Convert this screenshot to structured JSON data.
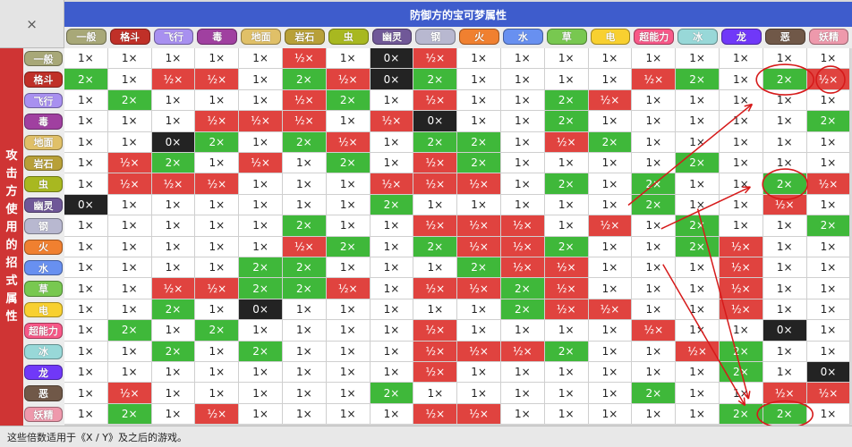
{
  "corner_symbol": "×",
  "defense_title": "防御方的宝可梦属性",
  "attack_title": "攻击方使用的招式属性",
  "footnote": "这些倍数适用于《X / Y》及之后的游戏。",
  "types": [
    {
      "name": "一般",
      "color": "#a8a878"
    },
    {
      "name": "格斗",
      "color": "#c03028"
    },
    {
      "name": "飞行",
      "color": "#a890f0"
    },
    {
      "name": "毒",
      "color": "#a040a0"
    },
    {
      "name": "地面",
      "color": "#e0c068"
    },
    {
      "name": "岩石",
      "color": "#b8a038"
    },
    {
      "name": "虫",
      "color": "#a8b820"
    },
    {
      "name": "幽灵",
      "color": "#705898"
    },
    {
      "name": "钢",
      "color": "#b8b8d0"
    },
    {
      "name": "火",
      "color": "#f08030"
    },
    {
      "name": "水",
      "color": "#6890f0"
    },
    {
      "name": "草",
      "color": "#78c850"
    },
    {
      "name": "电",
      "color": "#f8d030"
    },
    {
      "name": "超能力",
      "color": "#f85888"
    },
    {
      "name": "冰",
      "color": "#98d8d8"
    },
    {
      "name": "龙",
      "color": "#7038f8"
    },
    {
      "name": "恶",
      "color": "#705848"
    },
    {
      "name": "妖精",
      "color": "#ee99ac"
    }
  ],
  "multipliers": [
    [
      "1×",
      "1×",
      "1×",
      "1×",
      "1×",
      "½×",
      "1×",
      "0×",
      "½×",
      "1×",
      "1×",
      "1×",
      "1×",
      "1×",
      "1×",
      "1×",
      "1×",
      "1×"
    ],
    [
      "2×",
      "1×",
      "½×",
      "½×",
      "1×",
      "2×",
      "½×",
      "0×",
      "2×",
      "1×",
      "1×",
      "1×",
      "1×",
      "½×",
      "2×",
      "1×",
      "2×",
      "½×"
    ],
    [
      "1×",
      "2×",
      "1×",
      "1×",
      "1×",
      "½×",
      "2×",
      "1×",
      "½×",
      "1×",
      "1×",
      "2×",
      "½×",
      "1×",
      "1×",
      "1×",
      "1×",
      "1×"
    ],
    [
      "1×",
      "1×",
      "1×",
      "½×",
      "½×",
      "½×",
      "1×",
      "½×",
      "0×",
      "1×",
      "1×",
      "2×",
      "1×",
      "1×",
      "1×",
      "1×",
      "1×",
      "2×"
    ],
    [
      "1×",
      "1×",
      "0×",
      "2×",
      "1×",
      "2×",
      "½×",
      "1×",
      "2×",
      "2×",
      "1×",
      "½×",
      "2×",
      "1×",
      "1×",
      "1×",
      "1×",
      "1×"
    ],
    [
      "1×",
      "½×",
      "2×",
      "1×",
      "½×",
      "1×",
      "2×",
      "1×",
      "½×",
      "2×",
      "1×",
      "1×",
      "1×",
      "1×",
      "2×",
      "1×",
      "1×",
      "1×"
    ],
    [
      "1×",
      "½×",
      "½×",
      "½×",
      "1×",
      "1×",
      "1×",
      "½×",
      "½×",
      "½×",
      "1×",
      "2×",
      "1×",
      "2×",
      "1×",
      "1×",
      "2×",
      "½×"
    ],
    [
      "0×",
      "1×",
      "1×",
      "1×",
      "1×",
      "1×",
      "1×",
      "2×",
      "1×",
      "1×",
      "1×",
      "1×",
      "1×",
      "2×",
      "1×",
      "1×",
      "½×",
      "1×"
    ],
    [
      "1×",
      "1×",
      "1×",
      "1×",
      "1×",
      "2×",
      "1×",
      "1×",
      "½×",
      "½×",
      "½×",
      "1×",
      "½×",
      "1×",
      "2×",
      "1×",
      "1×",
      "2×"
    ],
    [
      "1×",
      "1×",
      "1×",
      "1×",
      "1×",
      "½×",
      "2×",
      "1×",
      "2×",
      "½×",
      "½×",
      "2×",
      "1×",
      "1×",
      "2×",
      "½×",
      "1×",
      "1×"
    ],
    [
      "1×",
      "1×",
      "1×",
      "1×",
      "2×",
      "2×",
      "1×",
      "1×",
      "1×",
      "2×",
      "½×",
      "½×",
      "1×",
      "1×",
      "1×",
      "½×",
      "1×",
      "1×"
    ],
    [
      "1×",
      "1×",
      "½×",
      "½×",
      "2×",
      "2×",
      "½×",
      "1×",
      "½×",
      "½×",
      "2×",
      "½×",
      "1×",
      "1×",
      "1×",
      "½×",
      "1×",
      "1×"
    ],
    [
      "1×",
      "1×",
      "2×",
      "1×",
      "0×",
      "1×",
      "1×",
      "1×",
      "1×",
      "1×",
      "2×",
      "½×",
      "½×",
      "1×",
      "1×",
      "½×",
      "1×",
      "1×"
    ],
    [
      "1×",
      "2×",
      "1×",
      "2×",
      "1×",
      "1×",
      "1×",
      "1×",
      "½×",
      "1×",
      "1×",
      "1×",
      "1×",
      "½×",
      "1×",
      "1×",
      "0×",
      "1×"
    ],
    [
      "1×",
      "1×",
      "2×",
      "1×",
      "2×",
      "1×",
      "1×",
      "1×",
      "½×",
      "½×",
      "½×",
      "2×",
      "1×",
      "1×",
      "½×",
      "2×",
      "1×",
      "1×"
    ],
    [
      "1×",
      "1×",
      "1×",
      "1×",
      "1×",
      "1×",
      "1×",
      "1×",
      "½×",
      "1×",
      "1×",
      "1×",
      "1×",
      "1×",
      "1×",
      "2×",
      "1×",
      "0×"
    ],
    [
      "1×",
      "½×",
      "1×",
      "1×",
      "1×",
      "1×",
      "1×",
      "2×",
      "1×",
      "1×",
      "1×",
      "1×",
      "1×",
      "2×",
      "1×",
      "1×",
      "½×",
      "½×"
    ],
    [
      "1×",
      "2×",
      "1×",
      "½×",
      "1×",
      "1×",
      "1×",
      "1×",
      "½×",
      "½×",
      "1×",
      "1×",
      "1×",
      "1×",
      "1×",
      "2×",
      "2×",
      "1×"
    ]
  ],
  "cell_colors": {
    "super": "#3fb83a",
    "weak": "#e0433f",
    "immune": "#232323",
    "normal": "#ffffff"
  },
  "annotation_color": "#d61a1a"
}
